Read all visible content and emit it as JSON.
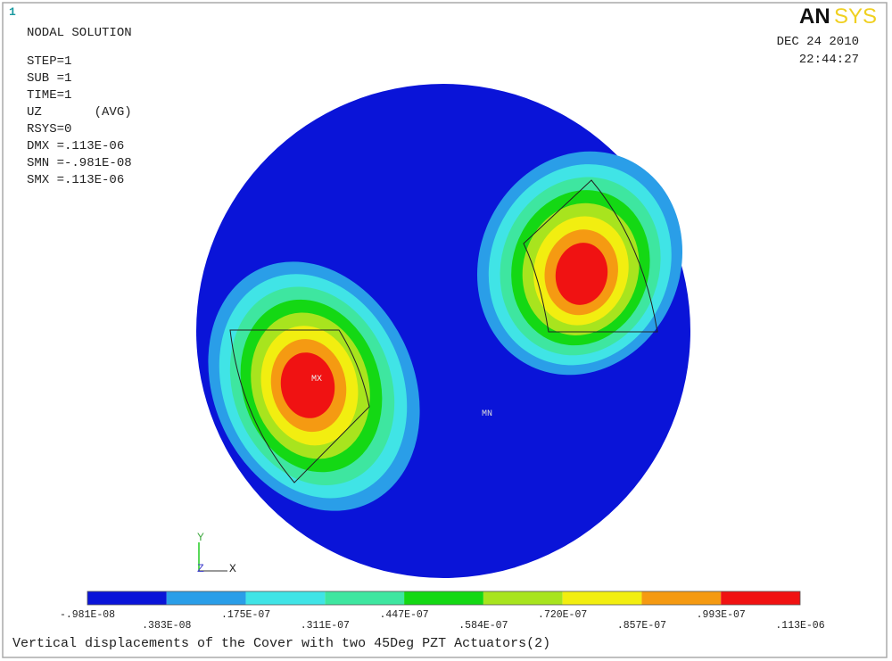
{
  "window_number": "1",
  "header": {
    "title": "NODAL SOLUTION",
    "info": [
      "STEP=1",
      "SUB =1",
      "TIME=1",
      "UZ       (AVG)",
      "RSYS=0",
      "DMX =.113E-06",
      "SMN =-.981E-08",
      "SMX =.113E-06"
    ],
    "date": "DEC 24 2010",
    "time": "22:44:27",
    "logo_a": "AN",
    "logo_b": "SYS"
  },
  "markers": {
    "max": "MX",
    "min": "MN"
  },
  "triad": {
    "y": "Y",
    "z": "Z",
    "x": "X"
  },
  "legend": {
    "colors": [
      "#0a14d8",
      "#2a9ee8",
      "#40e4e6",
      "#3ee6a0",
      "#14d814",
      "#a8e41e",
      "#f2ee10",
      "#f59a12",
      "#f01212"
    ],
    "labels": [
      "-.981E-08",
      ".383E-08",
      ".175E-07",
      ".311E-07",
      ".447E-07",
      ".584E-07",
      ".720E-07",
      ".857E-07",
      ".993E-07",
      ".113E-06"
    ]
  },
  "caption": "Vertical displacements of the Cover with two 45Deg PZT Actuators(2)"
}
